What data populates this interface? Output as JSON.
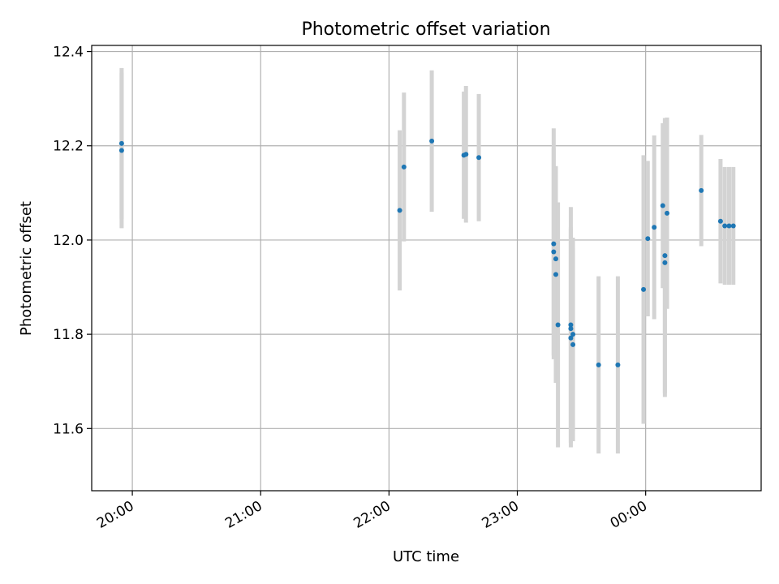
{
  "chart_data": {
    "type": "scatter",
    "title": "Photometric offset variation",
    "xlabel": "UTC time",
    "ylabel": "Photometric offset",
    "x_is_time": true,
    "x_range": [
      "19:41",
      "24:54"
    ],
    "ylim": [
      11.468,
      12.413
    ],
    "grid": true,
    "x_ticks": [
      {
        "t": "20:00",
        "label": "20:00"
      },
      {
        "t": "21:00",
        "label": "21:00"
      },
      {
        "t": "22:00",
        "label": "22:00"
      },
      {
        "t": "23:00",
        "label": "23:00"
      },
      {
        "t": "24:00",
        "label": "00:00"
      }
    ],
    "y_ticks": [
      11.6,
      11.8,
      12.0,
      12.2,
      12.4
    ],
    "colors": {
      "point": "#1f77b4",
      "errorbar": "#d3d3d3",
      "grid": "#b0b0b0"
    },
    "points": [
      {
        "t": "19:55",
        "y": 12.19,
        "err": 0.165
      },
      {
        "t": "19:55",
        "y": 12.205,
        "err": 0.16
      },
      {
        "t": "22:05",
        "y": 12.063,
        "err": 0.17
      },
      {
        "t": "22:07",
        "y": 12.155,
        "err": 0.158
      },
      {
        "t": "22:20",
        "y": 12.21,
        "err": 0.15
      },
      {
        "t": "22:35",
        "y": 12.18,
        "err": 0.135
      },
      {
        "t": "22:36",
        "y": 12.182,
        "err": 0.145
      },
      {
        "t": "22:42",
        "y": 12.175,
        "err": 0.135
      },
      {
        "t": "23:17",
        "y": 11.992,
        "err": 0.245
      },
      {
        "t": "23:17",
        "y": 11.975,
        "err": 0.22
      },
      {
        "t": "23:18",
        "y": 11.96,
        "err": 0.195
      },
      {
        "t": "23:18",
        "y": 11.927,
        "err": 0.23
      },
      {
        "t": "23:19",
        "y": 11.82,
        "err": 0.26
      },
      {
        "t": "23:25",
        "y": 11.82,
        "err": 0.25
      },
      {
        "t": "23:25",
        "y": 11.812,
        "err": 0.215
      },
      {
        "t": "23:25",
        "y": 11.792,
        "err": 0.232
      },
      {
        "t": "23:26",
        "y": 11.8,
        "err": 0.205
      },
      {
        "t": "23:26",
        "y": 11.778,
        "err": 0.205
      },
      {
        "t": "23:38",
        "y": 11.735,
        "err": 0.188
      },
      {
        "t": "23:47",
        "y": 11.735,
        "err": 0.188
      },
      {
        "t": "23:59",
        "y": 11.895,
        "err": 0.285
      },
      {
        "t": "24:01",
        "y": 12.003,
        "err": 0.165
      },
      {
        "t": "24:04",
        "y": 12.027,
        "err": 0.195
      },
      {
        "t": "24:08",
        "y": 12.073,
        "err": 0.175
      },
      {
        "t": "24:09",
        "y": 11.952,
        "err": 0.285
      },
      {
        "t": "24:09",
        "y": 11.967,
        "err": 0.292
      },
      {
        "t": "24:10",
        "y": 12.057,
        "err": 0.203
      },
      {
        "t": "24:26",
        "y": 12.105,
        "err": 0.118
      },
      {
        "t": "24:35",
        "y": 12.04,
        "err": 0.132
      },
      {
        "t": "24:37",
        "y": 12.03,
        "err": 0.125
      },
      {
        "t": "24:39",
        "y": 12.03,
        "err": 0.125
      },
      {
        "t": "24:41",
        "y": 12.03,
        "err": 0.125
      }
    ]
  }
}
